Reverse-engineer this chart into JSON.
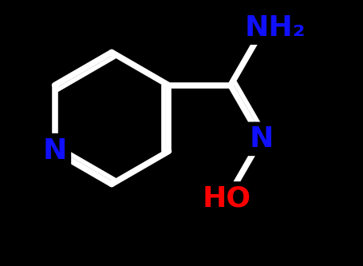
{
  "background_color": "#000000",
  "bond_color": "#ffffff",
  "bond_width": 5.5,
  "atom_N_color": "#1010ff",
  "atom_O_color": "#ff0000",
  "label_NH2": "NH₂",
  "label_N_left": "N",
  "label_N_right": "N",
  "label_HO": "HO",
  "figsize": [
    4.55,
    3.33
  ],
  "dpi": 100,
  "font_size": 26,
  "xlim": [
    0,
    9.1
  ],
  "ylim": [
    0,
    6.66
  ]
}
